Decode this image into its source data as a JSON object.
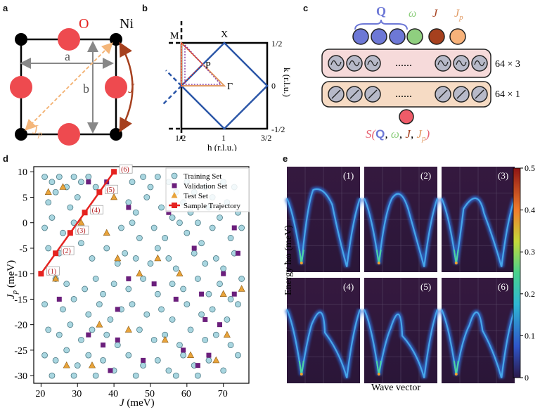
{
  "panels": {
    "a": {
      "letter": "a",
      "labels": {
        "O": "O",
        "Ni": "Ni",
        "a": "a",
        "b": "b",
        "J": "J",
        "Jp": "J",
        "Jp_sub": "p"
      }
    },
    "b": {
      "letter": "b",
      "labels": {
        "M": "M",
        "X": "X",
        "P": "P",
        "Gamma": "Γ",
        "xlabel": "h (r.l.u.)",
        "ylabel": "k (r.l.u.)",
        "xticks": [
          "1/2",
          "1",
          "3/2"
        ],
        "yticks": [
          "1/2",
          "0",
          "-1/2"
        ]
      }
    },
    "c": {
      "letter": "c",
      "inputs": [
        "Q",
        "ω",
        "J",
        "J",
        "p"
      ],
      "layer1": "64 × 3",
      "layer2": "64 × 1",
      "dots": "......",
      "output": [
        "S(",
        "Q",
        ", ",
        "ω",
        ", ",
        "J",
        ", ",
        "J",
        "p",
        ")"
      ]
    },
    "e": {
      "letter": "e",
      "ylabel": "Energy ħω (meV)",
      "xlabel": "Wave vector",
      "subplot_labels": [
        "(1)",
        "(2)",
        "(3)",
        "(4)",
        "(5)",
        "(6)"
      ],
      "colorbar_ticks": [
        "0.5",
        "0.4",
        "0.3",
        "0.2",
        "0.1",
        "0"
      ]
    }
  },
  "colors": {
    "training": "#a9d6e0",
    "validation": "#6b1f7c",
    "test": "#e8a33a",
    "trajectory": "#e52320",
    "node_blue": "#6d78d6",
    "node_green": "#8fcf7f",
    "node_brown": "#a6401e",
    "node_orange": "#f7b27a",
    "output_node": "#ef5b68"
  },
  "chart_data": {
    "type": "scatter",
    "title": "",
    "xlabel": "J (meV)",
    "ylabel": "J_p (meV)",
    "xlim": [
      18,
      77
    ],
    "ylim": [
      -31.5,
      11
    ],
    "xticks": [
      20,
      30,
      40,
      50,
      60,
      70
    ],
    "yticks": [
      10,
      5,
      0,
      -5,
      -10,
      -15,
      -20,
      -25,
      -30
    ],
    "legend_position": "top-right",
    "legend": [
      "Training Set",
      "Validation Set",
      "Test Set",
      "Sample Trajectory"
    ],
    "series": [
      {
        "name": "Training Set",
        "marker": "circle",
        "points": [
          [
            21,
            9
          ],
          [
            23,
            8
          ],
          [
            25,
            9
          ],
          [
            27,
            7
          ],
          [
            29,
            9
          ],
          [
            31,
            8
          ],
          [
            33,
            9
          ],
          [
            35,
            7
          ],
          [
            45,
            8
          ],
          [
            48,
            9
          ],
          [
            50,
            7
          ],
          [
            52,
            9
          ],
          [
            55,
            8
          ],
          [
            57,
            6
          ],
          [
            60,
            8
          ],
          [
            62,
            6
          ],
          [
            65,
            7
          ],
          [
            67,
            5
          ],
          [
            70,
            8
          ],
          [
            73,
            7
          ],
          [
            22,
            4
          ],
          [
            24,
            6
          ],
          [
            28,
            3
          ],
          [
            30,
            5
          ],
          [
            44,
            4
          ],
          [
            46,
            2
          ],
          [
            49,
            5
          ],
          [
            53,
            3
          ],
          [
            56,
            1
          ],
          [
            59,
            4
          ],
          [
            61,
            2
          ],
          [
            63,
            0
          ],
          [
            66,
            3
          ],
          [
            69,
            1
          ],
          [
            71,
            4
          ],
          [
            74,
            2
          ],
          [
            21,
            -1
          ],
          [
            23,
            1
          ],
          [
            26,
            -2
          ],
          [
            29,
            0
          ],
          [
            42,
            -1
          ],
          [
            45,
            0
          ],
          [
            47,
            -3
          ],
          [
            51,
            -1
          ],
          [
            54,
            -3
          ],
          [
            58,
            0
          ],
          [
            60,
            -2
          ],
          [
            64,
            -4
          ],
          [
            67,
            -1
          ],
          [
            72,
            -3
          ],
          [
            75,
            -1
          ],
          [
            22,
            -5
          ],
          [
            25,
            -6
          ],
          [
            31,
            -4
          ],
          [
            34,
            -7
          ],
          [
            38,
            -5
          ],
          [
            41,
            -8
          ],
          [
            43,
            -6
          ],
          [
            46,
            -7
          ],
          [
            50,
            -8
          ],
          [
            52,
            -5
          ],
          [
            55,
            -7
          ],
          [
            57,
            -9
          ],
          [
            62,
            -6
          ],
          [
            65,
            -8
          ],
          [
            68,
            -7
          ],
          [
            70,
            -9
          ],
          [
            73,
            -6
          ],
          [
            24,
            -11
          ],
          [
            27,
            -12
          ],
          [
            32,
            -13
          ],
          [
            35,
            -11
          ],
          [
            37,
            -14
          ],
          [
            40,
            -12
          ],
          [
            44,
            -13
          ],
          [
            48,
            -11
          ],
          [
            52,
            -14
          ],
          [
            56,
            -12
          ],
          [
            59,
            -13
          ],
          [
            63,
            -11
          ],
          [
            66,
            -14
          ],
          [
            69,
            -12
          ],
          [
            72,
            -15
          ],
          [
            75,
            -11
          ],
          [
            21,
            -16
          ],
          [
            26,
            -17
          ],
          [
            29,
            -15
          ],
          [
            33,
            -18
          ],
          [
            36,
            -16
          ],
          [
            39,
            -19
          ],
          [
            42,
            -17
          ],
          [
            45,
            -16
          ],
          [
            49,
            -18
          ],
          [
            53,
            -17
          ],
          [
            56,
            -19
          ],
          [
            60,
            -16
          ],
          [
            64,
            -18
          ],
          [
            67,
            -17
          ],
          [
            71,
            -19
          ],
          [
            74,
            -16
          ],
          [
            22,
            -21
          ],
          [
            25,
            -22
          ],
          [
            28,
            -20
          ],
          [
            31,
            -23
          ],
          [
            34,
            -21
          ],
          [
            38,
            -22
          ],
          [
            41,
            -24
          ],
          [
            47,
            -21
          ],
          [
            51,
            -23
          ],
          [
            54,
            -22
          ],
          [
            58,
            -24
          ],
          [
            61,
            -21
          ],
          [
            65,
            -23
          ],
          [
            68,
            -22
          ],
          [
            72,
            -24
          ],
          [
            21,
            -26
          ],
          [
            24,
            -27
          ],
          [
            27,
            -25
          ],
          [
            30,
            -28
          ],
          [
            33,
            -26
          ],
          [
            37,
            -27
          ],
          [
            40,
            -29
          ],
          [
            44,
            -26
          ],
          [
            48,
            -28
          ],
          [
            52,
            -27
          ],
          [
            55,
            -29
          ],
          [
            59,
            -26
          ],
          [
            62,
            -28
          ],
          [
            66,
            -27
          ],
          [
            70,
            -29
          ],
          [
            74,
            -26
          ],
          [
            23,
            -30
          ],
          [
            29,
            -30
          ],
          [
            35,
            -30
          ],
          [
            46,
            -30
          ],
          [
            57,
            -30
          ],
          [
            63,
            -30
          ]
        ]
      },
      {
        "name": "Validation Set",
        "marker": "square",
        "points": [
          [
            33,
            8
          ],
          [
            38,
            8
          ],
          [
            44,
            3
          ],
          [
            55,
            2
          ],
          [
            73,
            -1
          ],
          [
            74,
            -6
          ],
          [
            62,
            -5
          ],
          [
            70,
            -10
          ],
          [
            44,
            -11
          ],
          [
            51,
            -12
          ],
          [
            64,
            -14
          ],
          [
            57,
            -15
          ],
          [
            73,
            -14
          ],
          [
            25,
            -15
          ],
          [
            41,
            -17
          ],
          [
            65,
            -19
          ],
          [
            69,
            -20
          ],
          [
            33,
            -22
          ],
          [
            37,
            -24
          ],
          [
            59,
            -25
          ],
          [
            48,
            -27
          ],
          [
            63,
            -28
          ],
          [
            41,
            -23
          ],
          [
            66,
            -26
          ],
          [
            39,
            -29
          ]
        ]
      },
      {
        "name": "Test Set",
        "marker": "triangle",
        "points": [
          [
            22,
            6
          ],
          [
            26,
            7
          ],
          [
            31,
            0
          ],
          [
            40,
            5
          ],
          [
            38,
            -2
          ],
          [
            41,
            -7
          ],
          [
            47,
            -10
          ],
          [
            58,
            -10
          ],
          [
            70,
            -14
          ],
          [
            24,
            -11
          ],
          [
            36,
            -20
          ],
          [
            44,
            -21
          ],
          [
            71,
            -22
          ],
          [
            27,
            -28
          ],
          [
            34,
            -28
          ],
          [
            54,
            -23
          ],
          [
            61,
            -26
          ],
          [
            68,
            -27
          ],
          [
            75,
            -13
          ],
          [
            52,
            -7
          ]
        ]
      },
      {
        "name": "Sample Trajectory",
        "marker": "square-line",
        "points": [
          [
            20,
            -10
          ],
          [
            24,
            -6
          ],
          [
            28,
            -2
          ],
          [
            32,
            2
          ],
          [
            36,
            6
          ],
          [
            40,
            10
          ]
        ],
        "labels": [
          "(1)",
          "(2)",
          "(3)",
          "(4)",
          "(5)",
          "(6)"
        ]
      }
    ]
  }
}
